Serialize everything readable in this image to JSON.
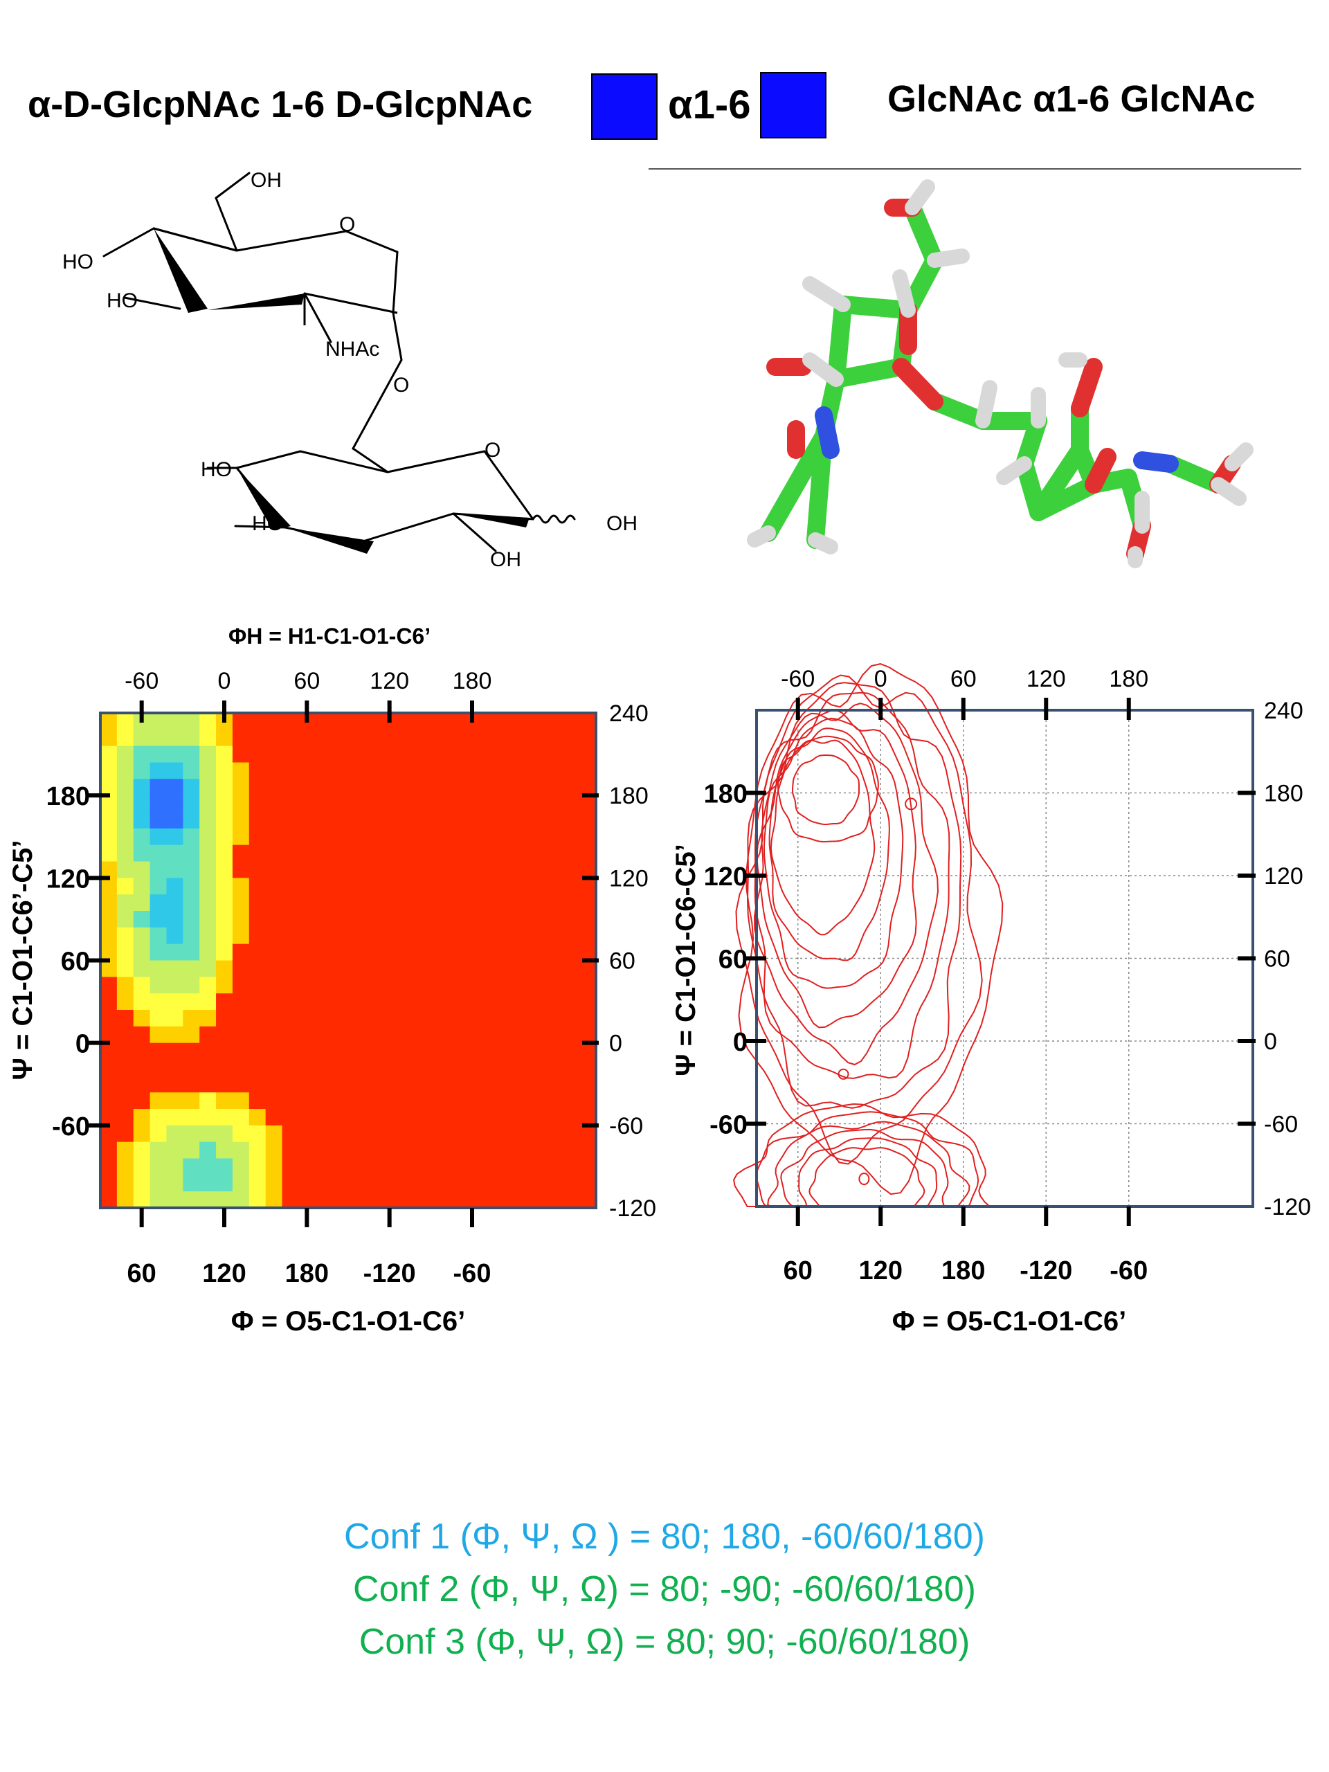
{
  "header": {
    "title_left": "α-D-GlcpNAc 1-6 D-GlcpNAc",
    "link_label": "α1-6",
    "title_right": "GlcNAc α1-6 GlcNAc",
    "symbol_color": "#0b0bff"
  },
  "structure2d": {
    "labels": [
      "OH",
      "O",
      "HO",
      "HO",
      "NHAc",
      "O",
      "HO",
      "O",
      "HO",
      "OH",
      "OH"
    ]
  },
  "chart_data": [
    {
      "type": "heatmap",
      "title": "ΦH = H1-C1-O1-C6’",
      "xlabel": "Φ = O5-C1-O1-C6’",
      "ylabel": "Ψ = C1-O1-C6’-C5’",
      "x_ticks": [
        "60",
        "120",
        "180",
        "-120",
        "-60"
      ],
      "x_top_ticks": [
        "-60",
        "0",
        "60",
        "120",
        "180"
      ],
      "y_ticks": [
        "180",
        "120",
        "60",
        "0",
        "-60"
      ],
      "y_right_ticks": [
        "240",
        "180",
        "120",
        "60",
        "0",
        "-60",
        "-120"
      ],
      "xlim": [
        30,
        390
      ],
      "ylim": [
        -120,
        240
      ],
      "colormap": [
        "#ff2a00",
        "#ffd000",
        "#ffff40",
        "#c8f060",
        "#60e0c0",
        "#30c8e8",
        "#3070ff"
      ],
      "regions": [
        {
          "x_center": 78,
          "y_center": 175,
          "peak_color": "#3070ff"
        },
        {
          "x_center": 85,
          "y_center": 95,
          "peak_color": "#30c8e8"
        },
        {
          "x_center": 105,
          "y_center": -90,
          "peak_color": "#c8f060"
        }
      ]
    },
    {
      "type": "contour",
      "xlabel": "Φ = O5-C1-O1-C6’",
      "ylabel": "Ψ = C1-O1-C6-C5’",
      "x_ticks": [
        "60",
        "120",
        "180",
        "-120",
        "-60"
      ],
      "x_top_ticks": [
        "-60",
        "0",
        "60",
        "120",
        "180"
      ],
      "y_ticks": [
        "180",
        "120",
        "60",
        "0",
        "-60"
      ],
      "y_right_ticks": [
        "240",
        "180",
        "120",
        "60",
        "0",
        "-60",
        "-120"
      ],
      "xlim": [
        30,
        390
      ],
      "ylim": [
        -120,
        240
      ],
      "grid": true,
      "contour_color": "#e02020",
      "minima": [
        {
          "x": 80,
          "y": 180
        },
        {
          "x": 80,
          "y": 90
        },
        {
          "x": 100,
          "y": -100
        }
      ]
    }
  ],
  "conformers": [
    {
      "text": "Conf 1 (Φ, Ψ, Ω ) = 80; 180, -60/60/180)",
      "color": "#1fa8e6"
    },
    {
      "text": "Conf 2 (Φ, Ψ, Ω) =  80; -90; -60/60/180)",
      "color": "#10b050"
    },
    {
      "text": "Conf 3 (Φ, Ψ, Ω) =  80; 90; -60/60/180)",
      "color": "#10b050"
    }
  ]
}
